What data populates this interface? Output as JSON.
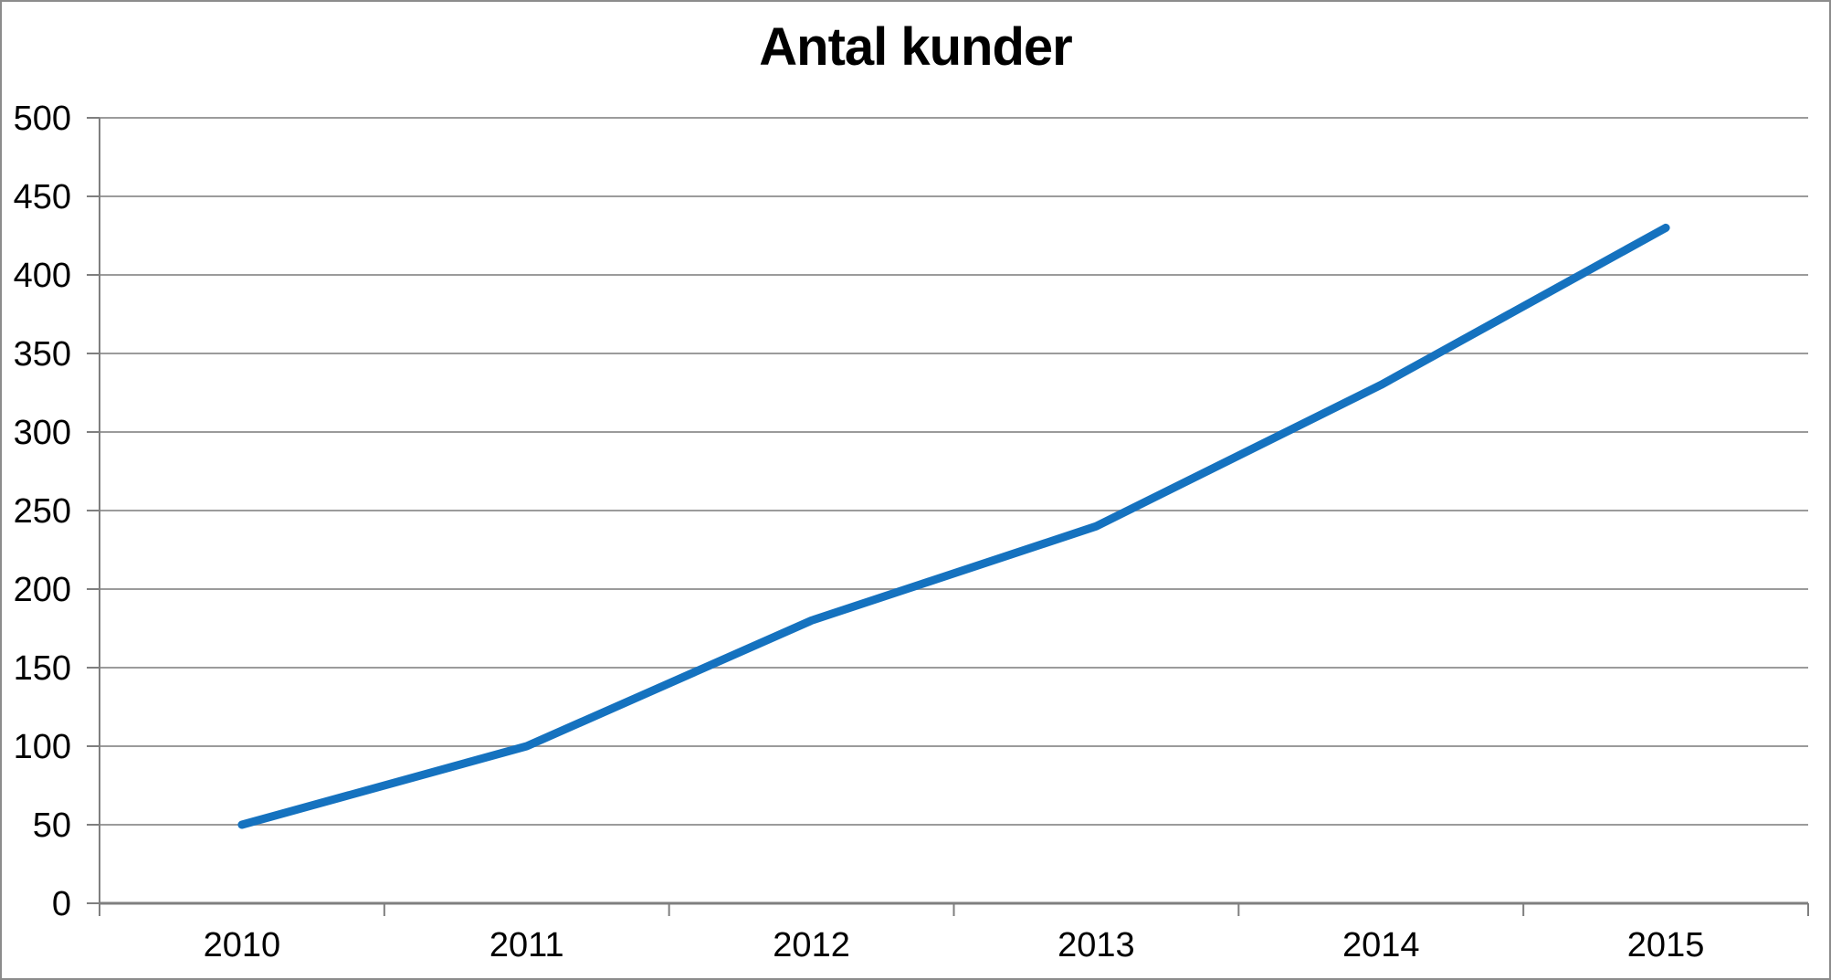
{
  "window": {
    "background_color": "#FFFFFF",
    "border_color": "#8C8C8C"
  },
  "chart_data": {
    "type": "line",
    "title": "Antal kunder",
    "categories": [
      "2010",
      "2011",
      "2012",
      "2013",
      "2014",
      "2015"
    ],
    "series": [
      {
        "name": "Antal kunder",
        "values": [
          50,
          100,
          180,
          240,
          330,
          430
        ]
      }
    ],
    "xlabel": "",
    "ylabel": "",
    "ylim": [
      0,
      500
    ],
    "ytick_step": 50,
    "grid": "horizontal",
    "legend": "none",
    "markers": "none",
    "colors": {
      "line": "#1572BF",
      "gridline": "#9B9B9B",
      "axis": "#7F7F7F",
      "text": "#000000"
    }
  }
}
